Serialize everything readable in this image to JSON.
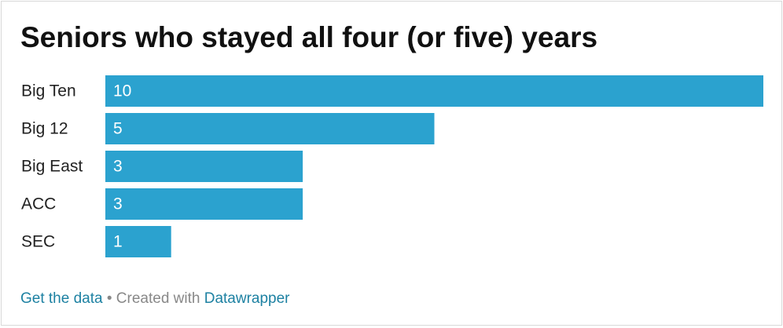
{
  "chart_data": {
    "type": "bar",
    "orientation": "horizontal",
    "title": "Seniors who stayed all four (or five) years",
    "categories": [
      "Big Ten",
      "Big 12",
      "Big East",
      "ACC",
      "SEC"
    ],
    "values": [
      10,
      5,
      3,
      3,
      1
    ],
    "color": "#2ba2cf",
    "xlim": [
      0,
      10
    ],
    "footer": {
      "get_data": "Get the data",
      "separator": "• Created with",
      "credit": "Datawrapper"
    }
  }
}
